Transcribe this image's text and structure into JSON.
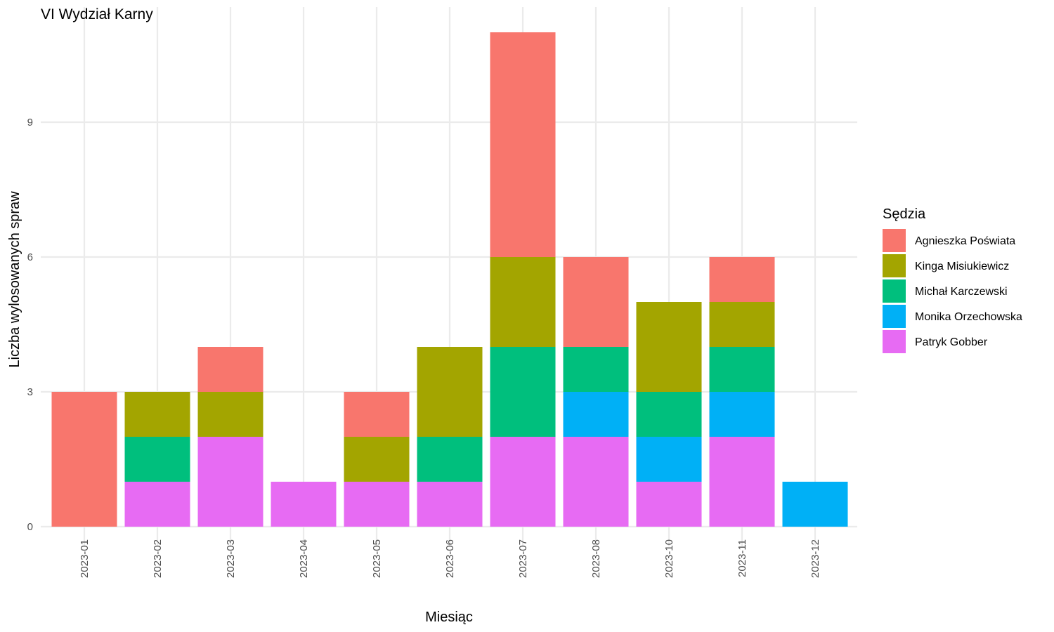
{
  "chart_data": {
    "type": "bar",
    "stacked": true,
    "title": "VI Wydział Karny",
    "xlabel": "Miesiąc",
    "ylabel": "Liczba wylosowanych spraw",
    "ylim": [
      0,
      11
    ],
    "yticks": [
      0,
      3,
      6,
      9
    ],
    "grid": true,
    "legend_title": "Sędzia",
    "legend_position": "right",
    "categories": [
      "2023-01",
      "2023-02",
      "2023-03",
      "2023-04",
      "2023-05",
      "2023-06",
      "2023-07",
      "2023-08",
      "2023-10",
      "2023-11",
      "2023-12"
    ],
    "series": [
      {
        "name": "Agnieszka Poświata",
        "color": "#F8766D",
        "values": [
          3,
          0,
          1,
          0,
          1,
          0,
          5,
          2,
          0,
          1,
          0
        ]
      },
      {
        "name": "Kinga Misiukiewicz",
        "color": "#A3A500",
        "values": [
          0,
          1,
          1,
          0,
          1,
          2,
          2,
          0,
          2,
          1,
          0
        ]
      },
      {
        "name": "Michał Karczewski",
        "color": "#00BF7D",
        "values": [
          0,
          1,
          0,
          0,
          0,
          1,
          2,
          1,
          1,
          1,
          0
        ]
      },
      {
        "name": "Monika Orzechowska",
        "color": "#00B0F6",
        "values": [
          0,
          0,
          0,
          0,
          0,
          0,
          0,
          1,
          1,
          1,
          1
        ]
      },
      {
        "name": "Patryk Gobber",
        "color": "#E76BF3",
        "values": [
          0,
          1,
          2,
          1,
          1,
          1,
          2,
          2,
          1,
          2,
          0
        ]
      }
    ]
  }
}
